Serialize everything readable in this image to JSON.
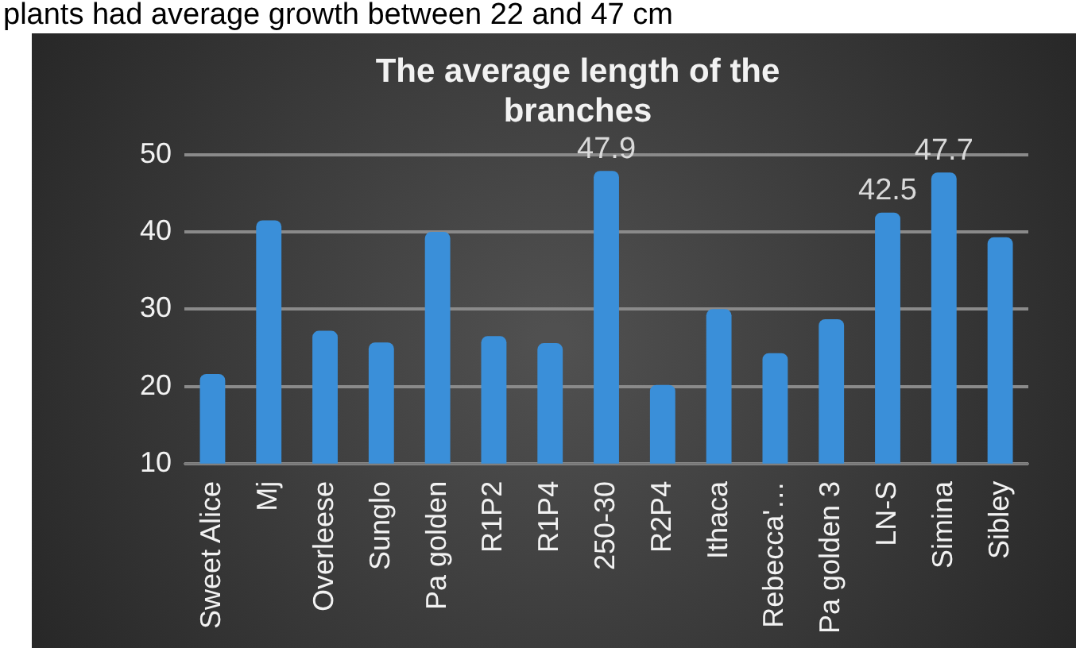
{
  "chart_data": {
    "type": "bar",
    "title": "The average length of the branches",
    "annotations": [
      "plants had average growth between 22 and 47 cm"
    ],
    "categories": [
      "Sweet Alice",
      "Mj",
      "Overleese",
      "Sunglo",
      "Pa golden",
      "R1P2",
      "R1P4",
      "250-30",
      "R2P4",
      "Ithaca",
      "Rebecca'…",
      "Pa golden 3",
      "LN-S",
      "Simina",
      "Sibley"
    ],
    "values": [
      21.6,
      41.5,
      27.2,
      25.7,
      40,
      26.5,
      25.6,
      47.9,
      20.2,
      30,
      24.3,
      28.7,
      42.5,
      47.7,
      39.3
    ],
    "value_labels": [
      null,
      null,
      null,
      null,
      null,
      null,
      null,
      "47.9",
      null,
      null,
      null,
      null,
      "42.5",
      "47.7",
      null
    ],
    "color": "#3a8fd9",
    "ylim": [
      10,
      50
    ],
    "yticks": [
      10,
      20,
      30,
      40,
      50
    ],
    "grid": "y",
    "legend": false
  }
}
